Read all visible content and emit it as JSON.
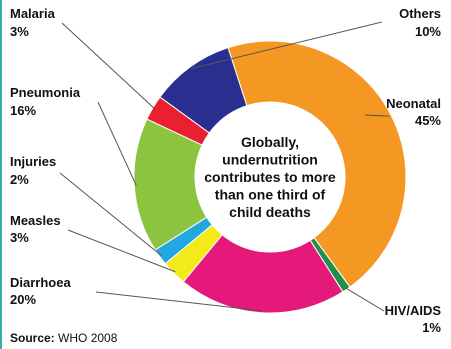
{
  "chart_data": {
    "type": "pie",
    "center_text": [
      "Globally,",
      "undernutrition",
      "contributes to more",
      "than one third of",
      "child deaths"
    ],
    "slices": [
      {
        "label": "Neonatal",
        "value": 45,
        "value_label": "45%",
        "color": "#f59723"
      },
      {
        "label": "HIV/AIDS",
        "value": 1,
        "value_label": "1%",
        "color": "#1f8f4a"
      },
      {
        "label": "Diarrhoea",
        "value": 20,
        "value_label": "20%",
        "color": "#e5197a"
      },
      {
        "label": "Measles",
        "value": 3,
        "value_label": "3%",
        "color": "#f3ea1a"
      },
      {
        "label": "Injuries",
        "value": 2,
        "value_label": "2%",
        "color": "#22a7e0"
      },
      {
        "label": "Pneumonia",
        "value": 16,
        "value_label": "16%",
        "color": "#8cc43f"
      },
      {
        "label": "Malaria",
        "value": 3,
        "value_label": "3%",
        "color": "#e82030"
      },
      {
        "label": "Others",
        "value": 10,
        "value_label": "10%",
        "color": "#2a2f8f"
      }
    ]
  },
  "source": {
    "label": "Source:",
    "text": "WHO 2008"
  }
}
